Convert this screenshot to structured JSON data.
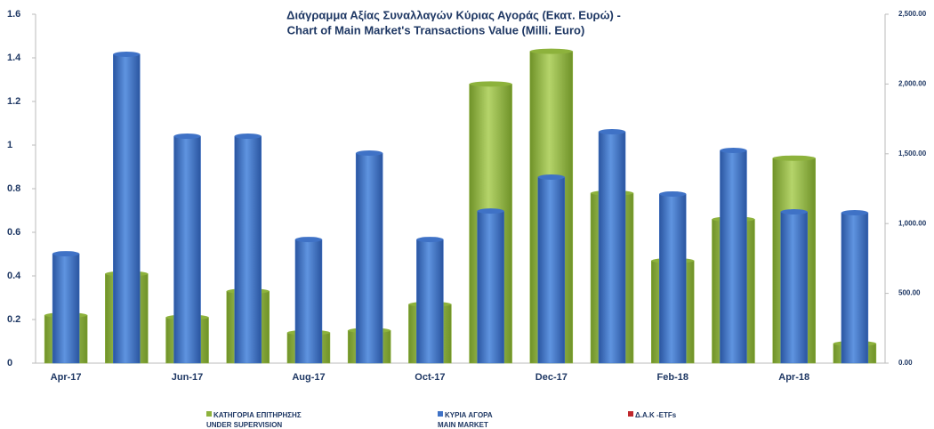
{
  "chart_data": {
    "type": "bar",
    "title": [
      "Διάγραμμα Αξίας Συναλλαγών Κύριας Αγοράς (Εκατ.  Ευρώ) -",
      "Chart of Main Market's Transactions Value (Milli. Euro)"
    ],
    "categories": [
      "Apr-17",
      null,
      "Jun-17",
      null,
      "Aug-17",
      null,
      "Oct-17",
      null,
      "Dec-17",
      null,
      "Feb-18",
      null,
      "Apr-18",
      null
    ],
    "series": [
      {
        "name": "ΚΑΤΗΓΟΡΙΑ ΕΠΙΤΗΡΗΣΗΣ\nUNDER SUPERVISION",
        "color": "#8db23c",
        "axis": "y",
        "values": [
          0.22,
          0.41,
          0.21,
          0.33,
          0.14,
          0.15,
          0.27,
          1.28,
          1.43,
          0.78,
          0.47,
          0.66,
          0.94,
          0.09
        ]
      },
      {
        "name": "ΚΥΡΙΑ ΑΓΟΡΑ\nMAIN MARKET",
        "color": "#3f72c6",
        "axis": "y2",
        "values": [
          784,
          2213,
          1626,
          1626,
          886,
          1505,
          886,
          1090,
          1333,
          1658,
          1212,
          1524,
          1084,
          1078
        ]
      },
      {
        "name": "Δ.Α.Κ -ETFs",
        "color": "#c0282d",
        "axis": "y",
        "values": [
          null,
          null,
          null,
          null,
          null,
          null,
          null,
          null,
          null,
          null,
          null,
          null,
          null,
          null
        ]
      }
    ],
    "ylim": [
      0,
      1.6
    ],
    "yticks": [
      0,
      0.2,
      0.4,
      0.6,
      0.8,
      1,
      1.2,
      1.4,
      1.6
    ],
    "y2lim": [
      0,
      2500
    ],
    "y2ticks": [
      {
        "value": 0,
        "label": "0.00"
      },
      {
        "value": 500,
        "label": "500.00"
      },
      {
        "value": 1000,
        "label": "1,000.00"
      },
      {
        "value": 1500,
        "label": "1,500.00"
      },
      {
        "value": 2000,
        "label": "2,000.00"
      },
      {
        "value": 2500,
        "label": "2,500.00"
      }
    ],
    "grid": false
  }
}
